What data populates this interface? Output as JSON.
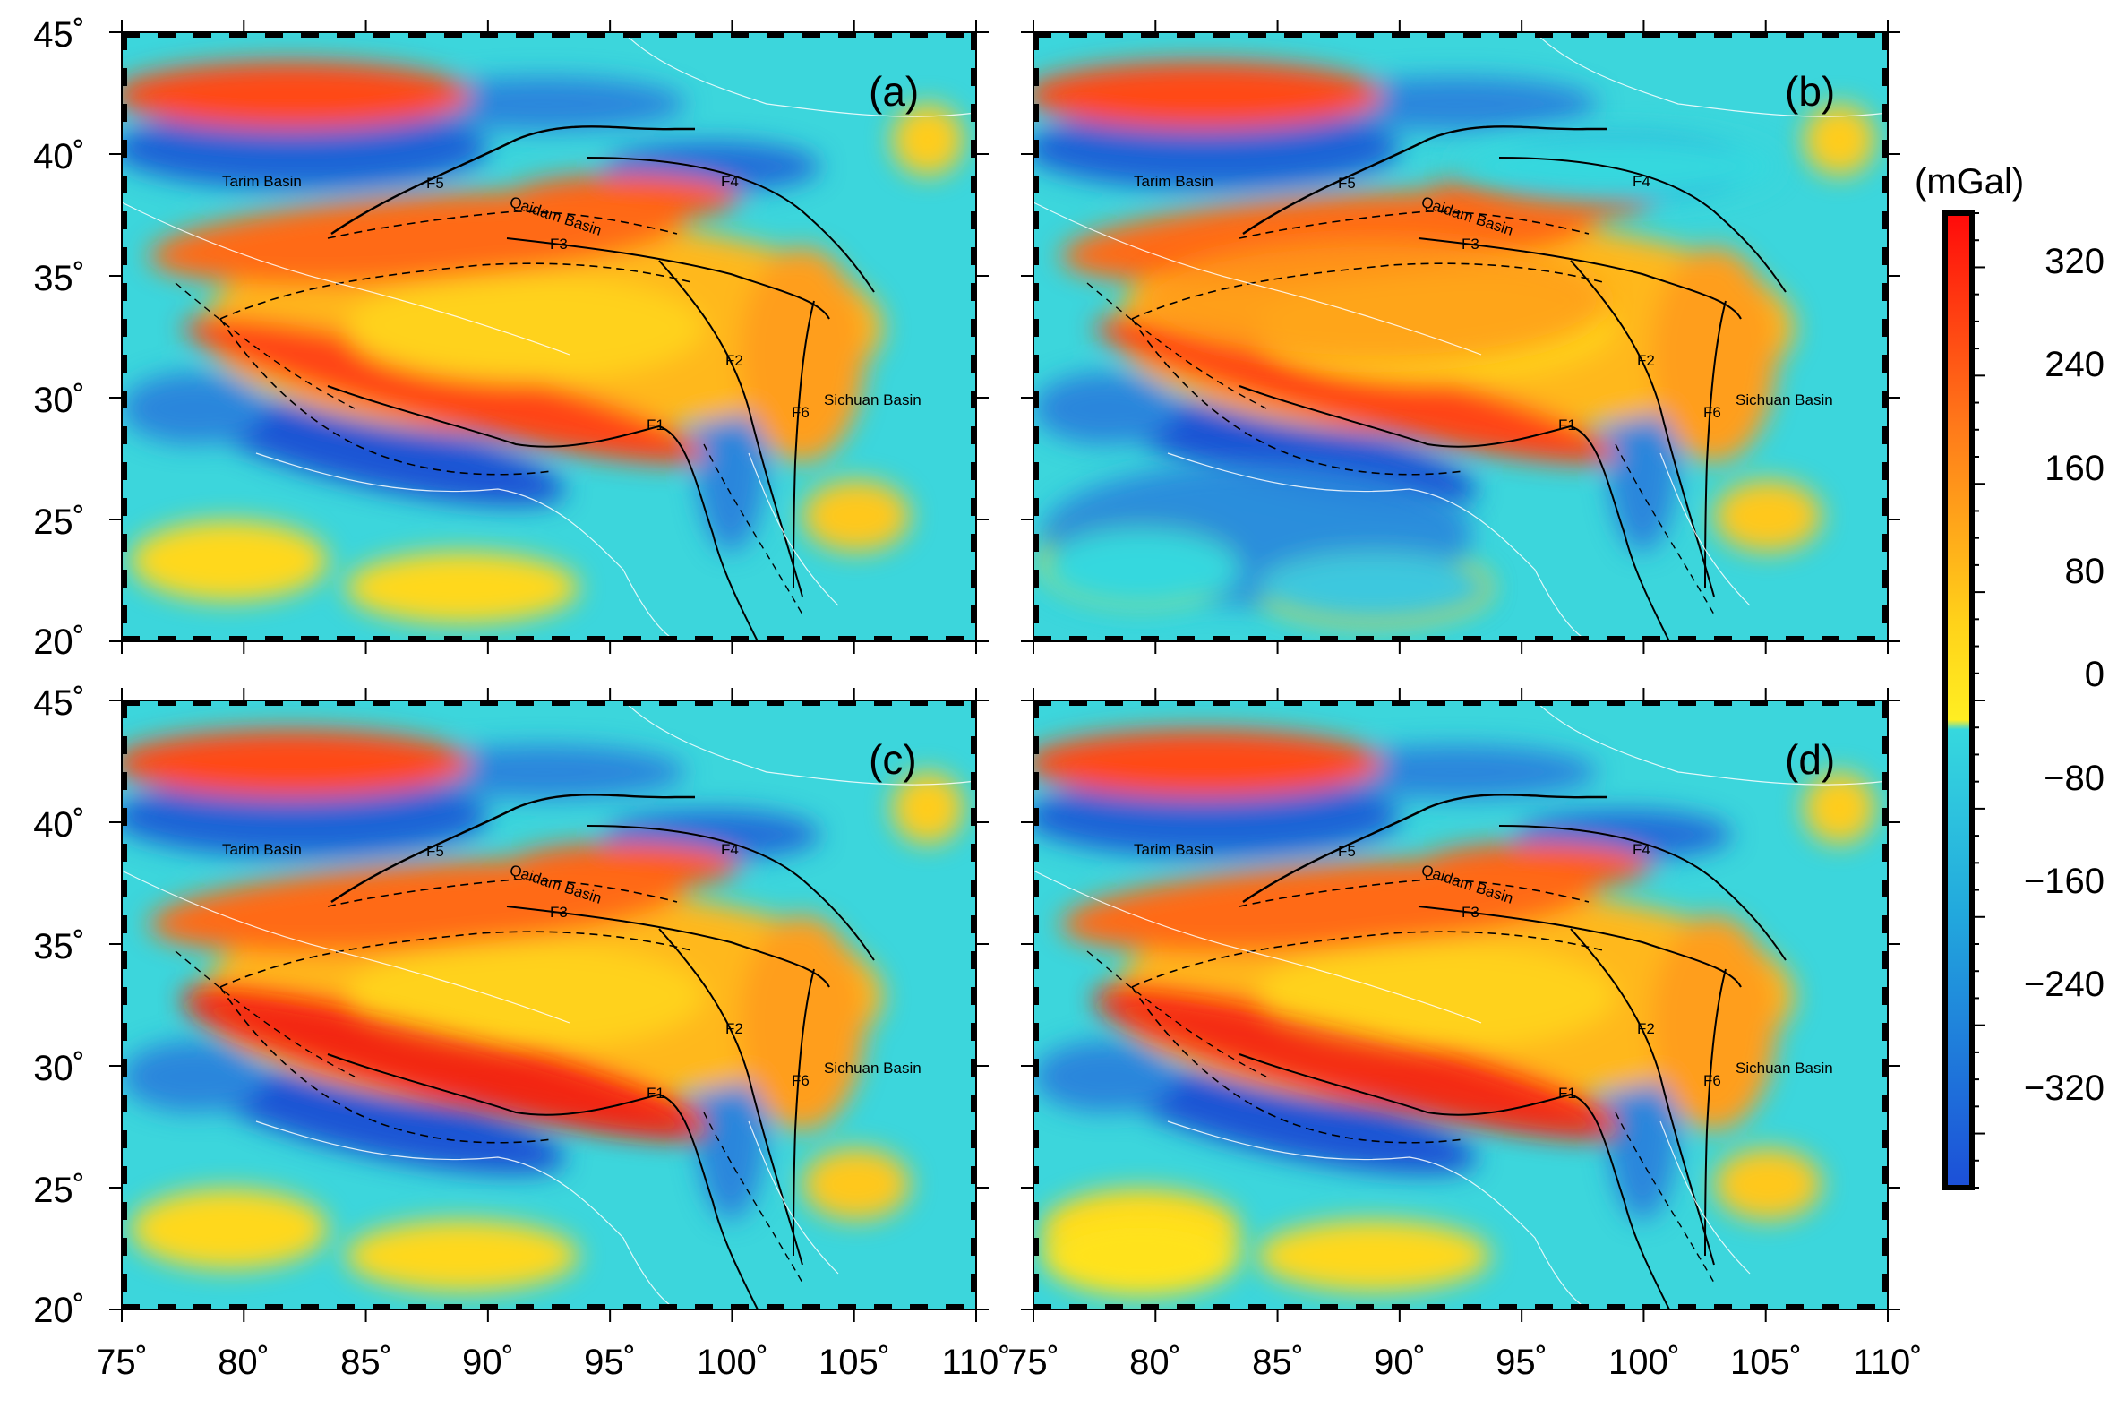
{
  "figure": {
    "panels": [
      {
        "label": "(a)"
      },
      {
        "label": "(b)"
      },
      {
        "label": "(c)"
      },
      {
        "label": "(d)"
      }
    ],
    "longitude_ticks": [
      "75˚",
      "80˚",
      "85˚",
      "90˚",
      "95˚",
      "100˚",
      "105˚",
      "110˚"
    ],
    "latitude_ticks": [
      "45˚",
      "40˚",
      "35˚",
      "30˚",
      "25˚",
      "20˚"
    ],
    "map_labels": {
      "tarim": "Tarim Basin",
      "qaidam": "Qaidam Basin",
      "sichuan": "Sichuan Basin",
      "f1": "F1",
      "f2": "F2",
      "f3": "F3",
      "f4": "F4",
      "f5": "F5",
      "f6": "F6"
    }
  },
  "colorbar": {
    "unit": "(mGal)",
    "ticks": [
      "320",
      "240",
      "160",
      "80",
      "0",
      "−80",
      "−160",
      "−240",
      "−320"
    ],
    "colors": [
      "#ff0a0a",
      "#ff8a1a",
      "#ffd21a",
      "#ffee22",
      "#36d8de",
      "#1c5fd8"
    ]
  },
  "chart_data": {
    "type": "heatmap",
    "xlim": [
      75,
      110
    ],
    "ylim": [
      20,
      45
    ],
    "x_ticks": [
      75,
      80,
      85,
      90,
      95,
      100,
      105,
      110
    ],
    "y_ticks": [
      20,
      25,
      30,
      35,
      40,
      45
    ],
    "colorbar_range": [
      -360,
      360
    ],
    "colorbar_ticks": [
      320,
      240,
      160,
      80,
      0,
      -80,
      -160,
      -240,
      -320
    ]
  }
}
